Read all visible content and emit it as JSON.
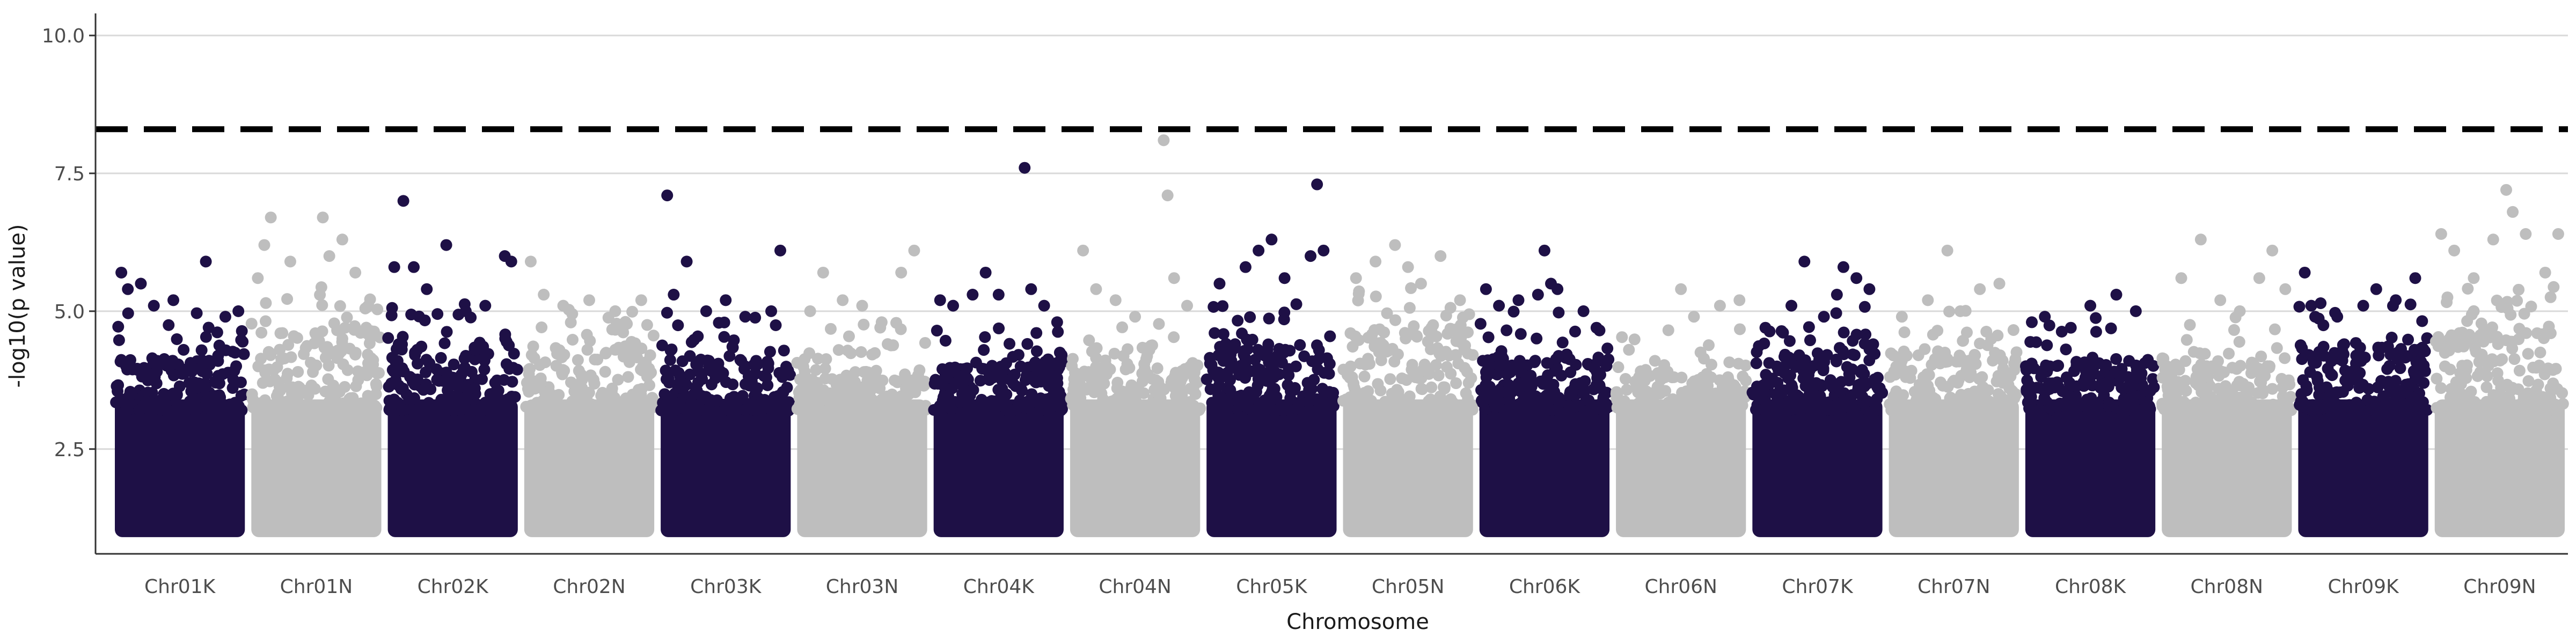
{
  "chart_data": {
    "type": "scatter",
    "title": "",
    "xlabel": "Chromosome",
    "ylabel": "-log10(p value)",
    "ylim": [
      0.6,
      10.4
    ],
    "yticks": [
      2.5,
      5.0,
      7.5,
      10.0
    ],
    "ytick_labels": [
      "2.5",
      "5.0",
      "7.5",
      "10.0"
    ],
    "grid": "horizontal major lines",
    "threshold": {
      "value": 8.3,
      "style": "dashed"
    },
    "colors": {
      "dark": "#1e1046",
      "light": "#bebebe",
      "grid": "#d9d9d9",
      "threshold": "#000000"
    },
    "categories": [
      "Chr01K",
      "Chr01N",
      "Chr02K",
      "Chr02N",
      "Chr03K",
      "Chr03N",
      "Chr04K",
      "Chr04N",
      "Chr05K",
      "Chr05N",
      "Chr06K",
      "Chr06N",
      "Chr07K",
      "Chr07N",
      "Chr08K",
      "Chr08N",
      "Chr09K",
      "Chr09N"
    ],
    "series": [
      {
        "chromosome": "Chr01K",
        "color": "dark",
        "dense_min": 1.0,
        "dense_top": 4.1,
        "outliers": [
          [
            0.05,
            5.7
          ],
          [
            0.1,
            5.4
          ],
          [
            0.2,
            5.5
          ],
          [
            0.3,
            5.1
          ],
          [
            0.45,
            5.2
          ],
          [
            0.7,
            5.9
          ],
          [
            0.85,
            4.9
          ],
          [
            0.95,
            5.0
          ]
        ]
      },
      {
        "chromosome": "Chr01N",
        "color": "light",
        "dense_min": 1.0,
        "dense_top": 4.6,
        "outliers": [
          [
            0.05,
            5.6
          ],
          [
            0.1,
            6.2
          ],
          [
            0.15,
            6.7
          ],
          [
            0.3,
            5.9
          ],
          [
            0.55,
            6.7
          ],
          [
            0.6,
            6.0
          ],
          [
            0.7,
            6.3
          ],
          [
            0.8,
            5.7
          ],
          [
            0.9,
            5.1
          ]
        ]
      },
      {
        "chromosome": "Chr02K",
        "color": "dark",
        "dense_min": 1.0,
        "dense_top": 4.3,
        "outliers": [
          [
            0.05,
            5.8
          ],
          [
            0.12,
            7.0
          ],
          [
            0.2,
            5.8
          ],
          [
            0.3,
            5.4
          ],
          [
            0.45,
            6.2
          ],
          [
            0.6,
            5.0
          ],
          [
            0.75,
            5.1
          ],
          [
            0.9,
            6.0
          ],
          [
            0.95,
            5.9
          ]
        ]
      },
      {
        "chromosome": "Chr02N",
        "color": "light",
        "dense_min": 1.0,
        "dense_top": 4.3,
        "outliers": [
          [
            0.05,
            5.9
          ],
          [
            0.15,
            5.3
          ],
          [
            0.3,
            5.1
          ],
          [
            0.5,
            5.2
          ],
          [
            0.7,
            5.0
          ],
          [
            0.9,
            5.2
          ]
        ]
      },
      {
        "chromosome": "Chr03K",
        "color": "dark",
        "dense_min": 1.0,
        "dense_top": 4.1,
        "outliers": [
          [
            0.05,
            7.1
          ],
          [
            0.1,
            5.3
          ],
          [
            0.2,
            5.9
          ],
          [
            0.35,
            5.0
          ],
          [
            0.5,
            5.2
          ],
          [
            0.65,
            4.9
          ],
          [
            0.85,
            5.0
          ],
          [
            0.92,
            6.1
          ]
        ]
      },
      {
        "chromosome": "Chr03N",
        "color": "light",
        "dense_min": 1.0,
        "dense_top": 3.9,
        "outliers": [
          [
            0.1,
            5.0
          ],
          [
            0.2,
            5.7
          ],
          [
            0.35,
            5.2
          ],
          [
            0.5,
            5.1
          ],
          [
            0.65,
            4.8
          ],
          [
            0.8,
            5.7
          ],
          [
            0.9,
            6.1
          ]
        ]
      },
      {
        "chromosome": "Chr04K",
        "color": "dark",
        "dense_min": 1.0,
        "dense_top": 4.0,
        "outliers": [
          [
            0.05,
            5.2
          ],
          [
            0.15,
            5.1
          ],
          [
            0.3,
            5.3
          ],
          [
            0.4,
            5.7
          ],
          [
            0.5,
            5.3
          ],
          [
            0.7,
            7.6
          ],
          [
            0.75,
            5.4
          ],
          [
            0.85,
            5.1
          ],
          [
            0.95,
            4.8
          ]
        ]
      },
      {
        "chromosome": "Chr04N",
        "color": "light",
        "dense_min": 1.0,
        "dense_top": 4.0,
        "outliers": [
          [
            0.1,
            6.1
          ],
          [
            0.2,
            5.4
          ],
          [
            0.35,
            5.2
          ],
          [
            0.5,
            4.9
          ],
          [
            0.72,
            8.1
          ],
          [
            0.75,
            7.1
          ],
          [
            0.8,
            5.6
          ],
          [
            0.9,
            5.1
          ]
        ]
      },
      {
        "chromosome": "Chr05K",
        "color": "dark",
        "dense_min": 1.0,
        "dense_top": 4.3,
        "outliers": [
          [
            0.1,
            5.5
          ],
          [
            0.3,
            5.8
          ],
          [
            0.4,
            6.1
          ],
          [
            0.5,
            6.3
          ],
          [
            0.6,
            5.6
          ],
          [
            0.8,
            6.0
          ],
          [
            0.85,
            7.3
          ],
          [
            0.9,
            6.1
          ]
        ]
      },
      {
        "chromosome": "Chr05N",
        "color": "light",
        "dense_min": 1.0,
        "dense_top": 4.6,
        "outliers": [
          [
            0.1,
            5.6
          ],
          [
            0.25,
            5.9
          ],
          [
            0.4,
            6.2
          ],
          [
            0.5,
            5.8
          ],
          [
            0.6,
            5.5
          ],
          [
            0.75,
            6.0
          ],
          [
            0.9,
            5.2
          ]
        ]
      },
      {
        "chromosome": "Chr06K",
        "color": "dark",
        "dense_min": 1.0,
        "dense_top": 4.1,
        "outliers": [
          [
            0.05,
            5.4
          ],
          [
            0.15,
            5.1
          ],
          [
            0.3,
            5.2
          ],
          [
            0.45,
            5.3
          ],
          [
            0.55,
            5.5
          ],
          [
            0.5,
            6.1
          ],
          [
            0.6,
            5.4
          ],
          [
            0.8,
            5.0
          ],
          [
            0.9,
            4.7
          ]
        ]
      },
      {
        "chromosome": "Chr06N",
        "color": "light",
        "dense_min": 1.0,
        "dense_top": 3.8,
        "outliers": [
          [
            0.1,
            4.3
          ],
          [
            0.3,
            4.1
          ],
          [
            0.5,
            5.4
          ],
          [
            0.6,
            4.9
          ],
          [
            0.8,
            5.1
          ],
          [
            0.95,
            5.2
          ]
        ]
      },
      {
        "chromosome": "Chr07K",
        "color": "dark",
        "dense_min": 1.0,
        "dense_top": 4.2,
        "outliers": [
          [
            0.1,
            4.7
          ],
          [
            0.3,
            5.1
          ],
          [
            0.4,
            5.9
          ],
          [
            0.55,
            4.9
          ],
          [
            0.65,
            5.3
          ],
          [
            0.7,
            5.8
          ],
          [
            0.8,
            5.6
          ],
          [
            0.9,
            5.4
          ]
        ]
      },
      {
        "chromosome": "Chr07N",
        "color": "light",
        "dense_min": 1.0,
        "dense_top": 4.2,
        "outliers": [
          [
            0.1,
            4.9
          ],
          [
            0.3,
            5.2
          ],
          [
            0.45,
            6.1
          ],
          [
            0.55,
            5.0
          ],
          [
            0.7,
            5.4
          ],
          [
            0.85,
            5.5
          ]
        ]
      },
      {
        "chromosome": "Chr08K",
        "color": "dark",
        "dense_min": 1.0,
        "dense_top": 4.0,
        "outliers": [
          [
            0.05,
            4.8
          ],
          [
            0.15,
            4.9
          ],
          [
            0.35,
            4.7
          ],
          [
            0.5,
            5.1
          ],
          [
            0.7,
            5.3
          ],
          [
            0.85,
            5.0
          ]
        ]
      },
      {
        "chromosome": "Chr08N",
        "color": "light",
        "dense_min": 1.0,
        "dense_top": 4.0,
        "outliers": [
          [
            0.15,
            5.6
          ],
          [
            0.3,
            6.3
          ],
          [
            0.45,
            5.2
          ],
          [
            0.6,
            5.0
          ],
          [
            0.75,
            5.6
          ],
          [
            0.85,
            6.1
          ],
          [
            0.95,
            5.4
          ]
        ]
      },
      {
        "chromosome": "Chr09K",
        "color": "dark",
        "dense_min": 1.0,
        "dense_top": 4.3,
        "outliers": [
          [
            0.05,
            5.7
          ],
          [
            0.1,
            5.1
          ],
          [
            0.3,
            4.9
          ],
          [
            0.5,
            5.1
          ],
          [
            0.6,
            5.4
          ],
          [
            0.75,
            5.2
          ],
          [
            0.9,
            5.6
          ]
        ]
      },
      {
        "chromosome": "Chr09N",
        "color": "light",
        "dense_min": 1.0,
        "dense_top": 4.6,
        "outliers": [
          [
            0.05,
            6.4
          ],
          [
            0.15,
            6.1
          ],
          [
            0.3,
            5.6
          ],
          [
            0.45,
            6.3
          ],
          [
            0.55,
            7.2
          ],
          [
            0.6,
            6.8
          ],
          [
            0.7,
            6.4
          ],
          [
            0.85,
            5.7
          ],
          [
            0.95,
            6.4
          ]
        ]
      }
    ]
  }
}
